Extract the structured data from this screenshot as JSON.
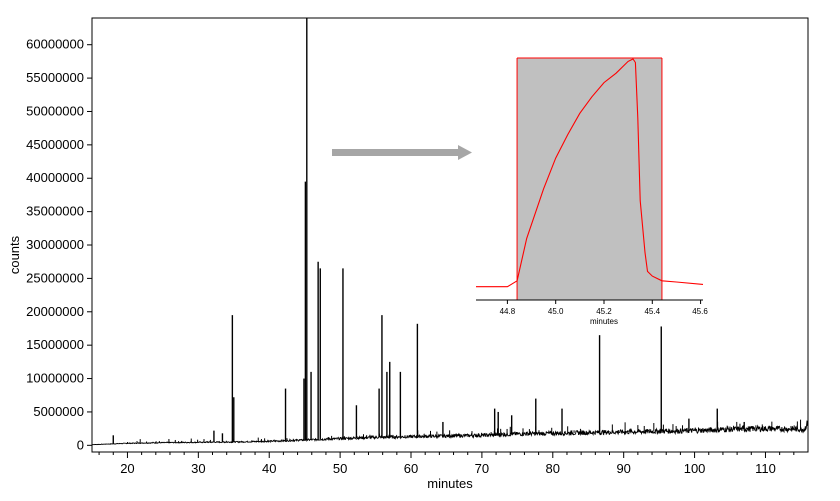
{
  "chart_data": [
    {
      "type": "line",
      "title": "",
      "xlabel": "minutes",
      "ylabel": "counts",
      "xlim": [
        15,
        116
      ],
      "ylim": [
        -1000000,
        64000000
      ],
      "x_ticks": [
        20,
        30,
        40,
        50,
        60,
        70,
        80,
        90,
        100,
        110
      ],
      "y_ticks": [
        0,
        5000000,
        10000000,
        15000000,
        20000000,
        25000000,
        30000000,
        35000000,
        40000000,
        45000000,
        50000000,
        55000000,
        60000000
      ],
      "grid": false,
      "legend": "none",
      "colors": {
        "trace": "#000000",
        "arrow": "#a6a6a6"
      },
      "baseline": [
        [
          15.0,
          100000
        ],
        [
          20,
          300000
        ],
        [
          25,
          400000
        ],
        [
          30,
          450000
        ],
        [
          35,
          500000
        ],
        [
          40,
          600000
        ],
        [
          45,
          800000
        ],
        [
          50,
          1000000
        ],
        [
          55,
          1200000
        ],
        [
          60,
          1300000
        ],
        [
          65,
          1400000
        ],
        [
          70,
          1500000
        ],
        [
          75,
          1700000
        ],
        [
          80,
          1800000
        ],
        [
          85,
          1900000
        ],
        [
          90,
          2000000
        ],
        [
          95,
          2100000
        ],
        [
          100,
          2200000
        ],
        [
          105,
          2400000
        ],
        [
          110,
          2500000
        ],
        [
          115.5,
          2400000
        ],
        [
          116,
          3500000
        ]
      ],
      "peaks": [
        [
          18.0,
          1500000
        ],
        [
          32.2,
          2200000
        ],
        [
          33.4,
          1800000
        ],
        [
          34.8,
          19500000
        ],
        [
          35.0,
          7200000
        ],
        [
          42.3,
          8500000
        ],
        [
          44.9,
          10000000
        ],
        [
          45.1,
          39500000
        ],
        [
          45.3,
          64000000
        ],
        [
          45.9,
          11000000
        ],
        [
          46.9,
          27500000
        ],
        [
          47.2,
          26500000
        ],
        [
          50.4,
          26500000
        ],
        [
          52.3,
          6000000
        ],
        [
          55.5,
          8500000
        ],
        [
          55.9,
          19500000
        ],
        [
          56.6,
          11000000
        ],
        [
          57.0,
          12500000
        ],
        [
          58.5,
          11000000
        ],
        [
          60.9,
          18200000
        ],
        [
          64.5,
          3500000
        ],
        [
          71.8,
          5500000
        ],
        [
          72.3,
          5000000
        ],
        [
          74.2,
          4500000
        ],
        [
          77.6,
          7000000
        ],
        [
          81.3,
          5500000
        ],
        [
          86.6,
          16500000
        ],
        [
          91.0,
          2500000
        ],
        [
          95.3,
          17800000
        ],
        [
          99.2,
          4000000
        ],
        [
          103.2,
          5500000
        ],
        [
          107.0,
          3500000
        ]
      ]
    },
    {
      "type": "line",
      "title": "",
      "xlabel": "minutes",
      "ylabel": "",
      "xlim": [
        44.67,
        45.61
      ],
      "x_ticks": [
        44.8,
        45.0,
        45.2,
        45.4,
        45.6
      ],
      "x_tick_labels": [
        "44.8",
        "45.0",
        "45.2",
        "45.4",
        "45.6"
      ],
      "y_relative_range": [
        0,
        1
      ],
      "highlight_range": [
        44.84,
        45.44
      ],
      "colors": {
        "trace": "#ff0000",
        "highlight_fill": "#c0c0c0",
        "highlight_edge": "#ff0000"
      },
      "x": [
        44.67,
        44.8,
        44.84,
        44.88,
        44.95,
        45.0,
        45.05,
        45.1,
        45.15,
        45.2,
        45.25,
        45.3,
        45.32,
        45.33,
        45.34,
        45.35,
        45.37,
        45.38,
        45.4,
        45.44,
        45.5,
        45.61
      ],
      "y": [
        0.035,
        0.035,
        0.06,
        0.24,
        0.45,
        0.58,
        0.68,
        0.77,
        0.84,
        0.9,
        0.94,
        0.99,
        1.0,
        0.985,
        0.75,
        0.4,
        0.18,
        0.1,
        0.08,
        0.06,
        0.055,
        0.045
      ]
    }
  ]
}
